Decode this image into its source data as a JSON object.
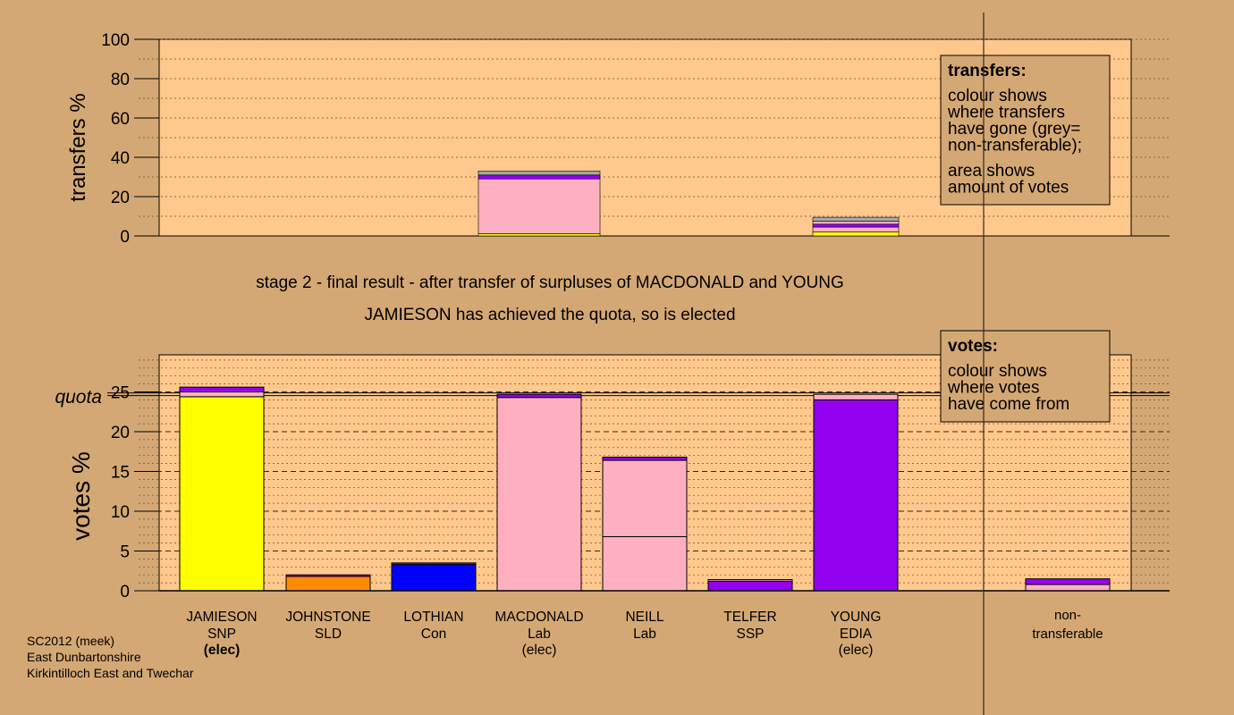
{
  "colors": {
    "background": "#D4A874",
    "plot_bg": "#FFC88C",
    "party": {
      "SNP": "#FFFF00",
      "SLD": "#FF8C00",
      "Con": "#0000FF",
      "Lab": "#FFB0C0",
      "EDIA": "#9400F0",
      "SSP": "#9400F0",
      "nontransfer": "#A8A8A8"
    }
  },
  "subtitle_line1": "stage 2 - final result - after transfer of surpluses of MACDONALD and YOUNG",
  "subtitle_line2": "JAMIESON has achieved the quota, so is elected",
  "footer": [
    "SC2012 (meek)",
    "East Dunbartonshire",
    "Kirkintilloch East and Twechar"
  ],
  "chart_data": [
    {
      "type": "bar",
      "stacked": true,
      "ylabel": "transfers %",
      "ylim": [
        0,
        100
      ],
      "yticks": [
        "0",
        "20",
        "40",
        "60",
        "80",
        "100"
      ],
      "grid": true,
      "legend_box": {
        "title": "transfers:",
        "lines1": [
          "colour shows",
          "where transfers",
          "have gone (grey=",
          "non-transferable);"
        ],
        "lines2": [
          "area shows",
          "amount of votes"
        ]
      },
      "columns": [
        {
          "candidate": "MACDONALD",
          "segments": [
            {
              "party": "SNP",
              "value": 1.2
            },
            {
              "party": "Lab",
              "value": 27.8
            },
            {
              "party": "EDIA",
              "value": 2.0
            },
            {
              "party": "nontransfer",
              "value": 2.0
            }
          ]
        },
        {
          "candidate": "YOUNG",
          "segments": [
            {
              "party": "SNP",
              "value": 2.0
            },
            {
              "party": "Lab",
              "value": 2.5
            },
            {
              "party": "EDIA",
              "value": 1.5
            },
            {
              "party": "Lab2",
              "value": 1.5
            },
            {
              "party": "nontransfer",
              "value": 2.0
            }
          ]
        }
      ]
    },
    {
      "type": "bar",
      "stacked": true,
      "ylabel": "votes %",
      "quota_label": "quota",
      "quota": 24.7,
      "ylim": [
        0,
        29
      ],
      "yticks": [
        "0",
        "5",
        "10",
        "15",
        "20",
        "25"
      ],
      "grid": true,
      "legend_box": {
        "title": "votes:",
        "lines1": [
          "colour shows",
          "where votes",
          "have come from"
        ]
      },
      "categories": [
        {
          "name": "JAMIESON",
          "party": "SNP",
          "note": "(elec)"
        },
        {
          "name": "JOHNSTONE",
          "party": "SLD",
          "note": ""
        },
        {
          "name": "LOTHIAN",
          "party": "Con",
          "note": ""
        },
        {
          "name": "MACDONALD",
          "party": "Lab",
          "note": "(elec)"
        },
        {
          "name": "NEILL",
          "party": "Lab",
          "note": ""
        },
        {
          "name": "TELFER",
          "party": "SSP",
          "note": ""
        },
        {
          "name": "YOUNG",
          "party": "EDIA",
          "note": "(elec)"
        },
        {
          "name": "",
          "party": "",
          "note": ""
        },
        {
          "name": "non-",
          "party": "transferable",
          "note": ""
        }
      ],
      "bars": [
        {
          "segments": [
            {
              "party": "SNP",
              "value": 24.4
            },
            {
              "party": "Lab",
              "value": 0.6
            },
            {
              "party": "EDIA",
              "value": 0.6
            }
          ]
        },
        {
          "segments": [
            {
              "party": "SLD",
              "value": 1.8
            },
            {
              "party": "EDIA",
              "value": 0.2
            }
          ]
        },
        {
          "segments": [
            {
              "party": "Con",
              "value": 3.3
            },
            {
              "party": "EDIA",
              "value": 0.2
            }
          ]
        },
        {
          "segments": [
            {
              "party": "Lab",
              "value": 24.3
            },
            {
              "party": "EDIA",
              "value": 0.4
            }
          ]
        },
        {
          "segments": [
            {
              "party": "Lab",
              "value": 6.8
            },
            {
              "party": "Lab",
              "value": 9.6
            },
            {
              "party": "EDIA",
              "value": 0.4
            }
          ]
        },
        {
          "segments": [
            {
              "party": "EDIA",
              "value": 1.2
            },
            {
              "party": "Lab",
              "value": 0.2
            }
          ]
        },
        {
          "segments": [
            {
              "party": "EDIA",
              "value": 24.0
            },
            {
              "party": "Lab",
              "value": 0.7
            }
          ]
        },
        {
          "segments": []
        },
        {
          "segments": [
            {
              "party": "Lab",
              "value": 0.8
            },
            {
              "party": "EDIA",
              "value": 0.7
            }
          ]
        }
      ]
    }
  ]
}
